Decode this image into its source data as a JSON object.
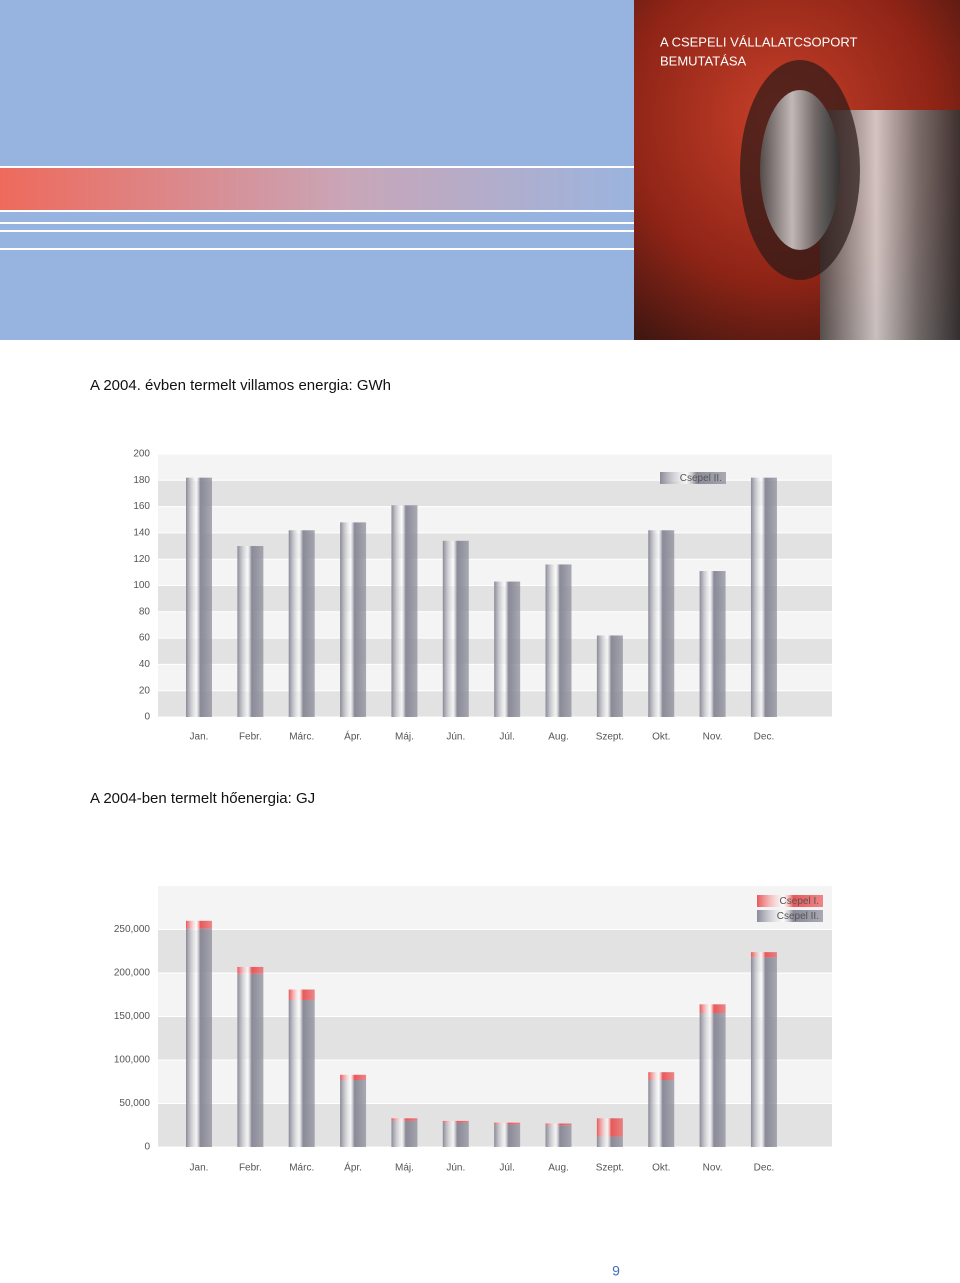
{
  "header": {
    "title_line1": "A CSEPELI VÁLLALATCSOPORT",
    "title_line2": "BEMUTATÁSA"
  },
  "page_number": "9",
  "chart_data": [
    {
      "type": "bar",
      "title": "A 2004. évben termelt villamos energia: GWh",
      "categories": [
        "Jan.",
        "Febr.",
        "Márc.",
        "Ápr.",
        "Máj.",
        "Jún.",
        "Júl.",
        "Aug.",
        "Szept.",
        "Okt.",
        "Nov.",
        "Dec."
      ],
      "series": [
        {
          "name": "Csepel II.",
          "color": "#8a8a98",
          "values": [
            182,
            130,
            142,
            148,
            161,
            134,
            103,
            116,
            62,
            142,
            111,
            182
          ]
        }
      ],
      "ylim": [
        0,
        200
      ],
      "yticks": [
        0,
        20,
        40,
        60,
        80,
        100,
        120,
        140,
        160,
        180,
        200
      ],
      "stacked": false
    },
    {
      "type": "bar",
      "title": "A 2004-ben termelt hőenergia: GJ",
      "categories": [
        "Jan.",
        "Febr.",
        "Márc.",
        "Ápr.",
        "Máj.",
        "Jún.",
        "Júl.",
        "Aug.",
        "Szept.",
        "Okt.",
        "Nov.",
        "Dec."
      ],
      "series": [
        {
          "name": "Csepel II.",
          "color": "#8a8a98",
          "values": [
            251000,
            199000,
            169000,
            77000,
            30000,
            28000,
            26000,
            25000,
            12000,
            77000,
            154000,
            218000
          ]
        },
        {
          "name": "Csepel I.",
          "color": "#e8585a",
          "values": [
            9000,
            8000,
            12000,
            6000,
            3000,
            2000,
            2000,
            2000,
            21000,
            9000,
            10000,
            6000
          ]
        }
      ],
      "ylim": [
        0,
        300000
      ],
      "yticks": [
        0,
        {
          "value": 50000,
          "label": "50,000"
        },
        {
          "value": 100000,
          "label": "100,000"
        },
        {
          "value": 150000,
          "label": "150,000"
        },
        {
          "value": 200000,
          "label": "200,000"
        },
        {
          "value": 250000,
          "label": "250,000"
        }
      ],
      "stacked": true
    }
  ]
}
